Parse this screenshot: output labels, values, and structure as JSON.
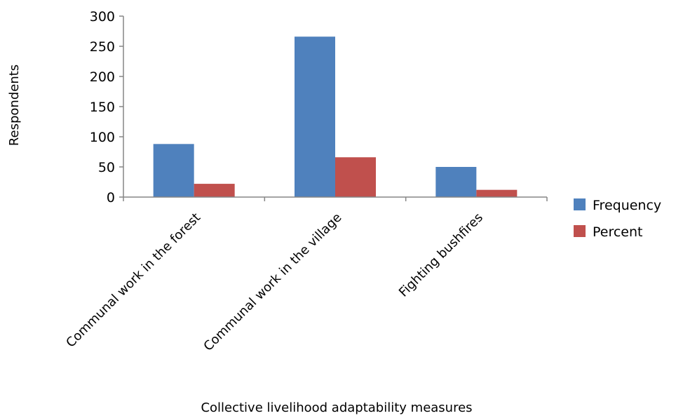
{
  "chart_data": {
    "type": "bar",
    "title": "",
    "xlabel": "Collective livelihood adaptability measures",
    "ylabel": "Respondents",
    "categories": [
      "Communal work in the forest",
      "Communal work in the village",
      "Fighting bushfires"
    ],
    "series": [
      {
        "name": "Frequency",
        "color": "#4f81bd",
        "values": [
          88,
          266,
          50
        ]
      },
      {
        "name": "Percent",
        "color": "#c0504d",
        "values": [
          22,
          66,
          12
        ]
      }
    ],
    "ylim": [
      0,
      300
    ],
    "yticks": [
      0,
      50,
      100,
      150,
      200,
      250,
      300
    ],
    "grid": false,
    "legend": "right"
  }
}
